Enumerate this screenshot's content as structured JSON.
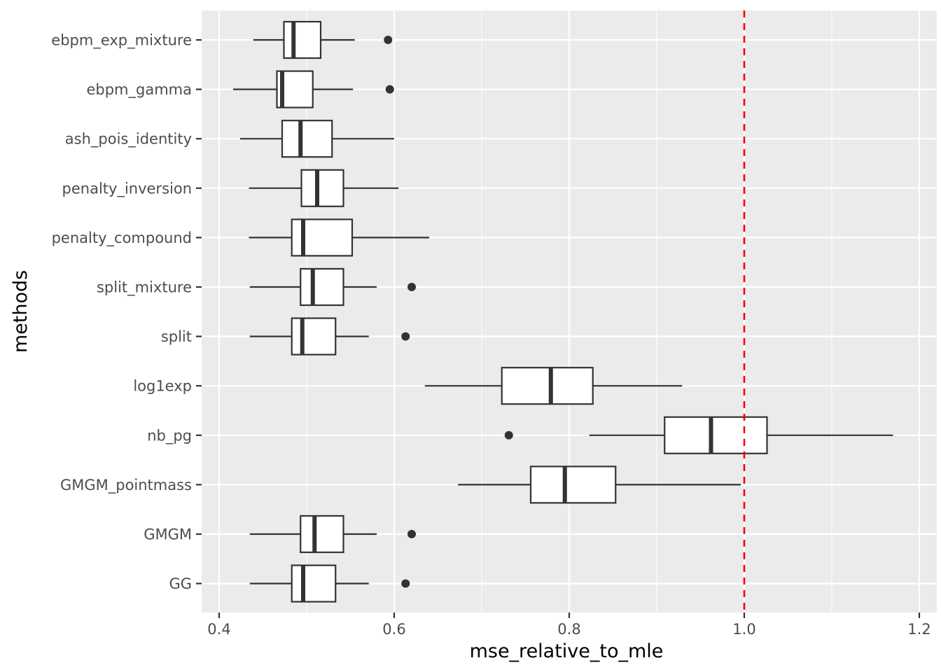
{
  "chart_data": {
    "type": "boxplot",
    "orientation": "horizontal",
    "xlabel": "mse_relative_to_mle",
    "ylabel": "methods",
    "xlim": [
      0.38,
      1.22
    ],
    "x_ticks": [
      0.4,
      0.6,
      0.8,
      1.0,
      1.2
    ],
    "x_tick_labels": [
      "0.4",
      "0.6",
      "0.8",
      "1.0",
      "1.2"
    ],
    "reference_line": {
      "x": 1.0,
      "color": "#ff0000",
      "style": "dashed"
    },
    "series": [
      {
        "name": "ebpm_exp_mixture",
        "whisker_low": 0.439,
        "q1": 0.474,
        "median": 0.485,
        "q3": 0.516,
        "whisker_high": 0.555,
        "outliers": [
          0.593
        ]
      },
      {
        "name": "ebpm_gamma",
        "whisker_low": 0.416,
        "q1": 0.466,
        "median": 0.472,
        "q3": 0.507,
        "whisker_high": 0.553,
        "outliers": [
          0.595
        ]
      },
      {
        "name": "ash_pois_identity",
        "whisker_low": 0.424,
        "q1": 0.472,
        "median": 0.493,
        "q3": 0.529,
        "whisker_high": 0.6,
        "outliers": []
      },
      {
        "name": "penalty_inversion",
        "whisker_low": 0.434,
        "q1": 0.494,
        "median": 0.512,
        "q3": 0.542,
        "whisker_high": 0.605,
        "outliers": []
      },
      {
        "name": "penalty_compound",
        "whisker_low": 0.434,
        "q1": 0.483,
        "median": 0.496,
        "q3": 0.552,
        "whisker_high": 0.64,
        "outliers": []
      },
      {
        "name": "split_mixture",
        "whisker_low": 0.435,
        "q1": 0.493,
        "median": 0.507,
        "q3": 0.542,
        "whisker_high": 0.58,
        "outliers": [
          0.62
        ]
      },
      {
        "name": "split",
        "whisker_low": 0.435,
        "q1": 0.483,
        "median": 0.495,
        "q3": 0.533,
        "whisker_high": 0.571,
        "outliers": [
          0.613
        ]
      },
      {
        "name": "log1exp",
        "whisker_low": 0.635,
        "q1": 0.723,
        "median": 0.779,
        "q3": 0.827,
        "whisker_high": 0.929,
        "outliers": []
      },
      {
        "name": "nb_pg",
        "whisker_low": 0.823,
        "q1": 0.909,
        "median": 0.962,
        "q3": 1.026,
        "whisker_high": 1.17,
        "outliers": [
          0.731
        ]
      },
      {
        "name": "GMGM_pointmass",
        "whisker_low": 0.673,
        "q1": 0.756,
        "median": 0.795,
        "q3": 0.853,
        "whisker_high": 0.996,
        "outliers": []
      },
      {
        "name": "GMGM",
        "whisker_low": 0.435,
        "q1": 0.493,
        "median": 0.509,
        "q3": 0.542,
        "whisker_high": 0.58,
        "outliers": [
          0.62
        ]
      },
      {
        "name": "GG",
        "whisker_low": 0.435,
        "q1": 0.483,
        "median": 0.496,
        "q3": 0.533,
        "whisker_high": 0.571,
        "outliers": [
          0.613
        ]
      }
    ]
  }
}
